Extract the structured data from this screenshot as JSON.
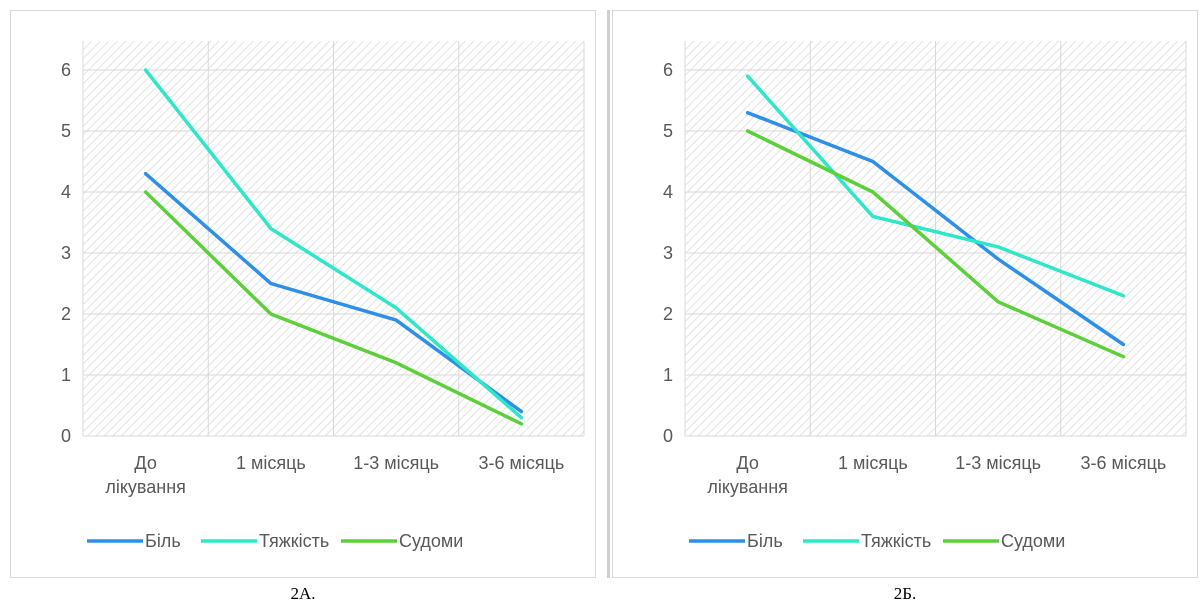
{
  "chart_data": [
    {
      "type": "line",
      "caption": "2А.",
      "categories": [
        [
          "До",
          "лікування"
        ],
        [
          "1 місяць"
        ],
        [
          "1-3 місяць"
        ],
        [
          "3-6 місяць"
        ]
      ],
      "ylim": [
        0,
        6
      ],
      "yticks": [
        "0",
        "1",
        "2",
        "3",
        "4",
        "5",
        "6"
      ],
      "grid": true,
      "legend_position": "bottom",
      "series": [
        {
          "name": "Біль",
          "color": "#2e8fe6",
          "values": [
            4.3,
            2.5,
            1.9,
            0.4
          ]
        },
        {
          "name": "Тяжкість",
          "color": "#2ee6c8",
          "values": [
            6.0,
            3.4,
            2.1,
            0.3
          ]
        },
        {
          "name": "Судоми",
          "color": "#5ccf3a",
          "values": [
            4.0,
            2.0,
            1.2,
            0.2
          ]
        }
      ]
    },
    {
      "type": "line",
      "caption": "2Б.",
      "categories": [
        [
          "До",
          "лікування"
        ],
        [
          "1 місяць"
        ],
        [
          "1-3 місяць"
        ],
        [
          "3-6 місяць"
        ]
      ],
      "ylim": [
        0,
        6
      ],
      "yticks": [
        "0",
        "1",
        "2",
        "3",
        "4",
        "5",
        "6"
      ],
      "grid": true,
      "legend_position": "bottom",
      "series": [
        {
          "name": "Біль",
          "color": "#2e8fe6",
          "values": [
            5.3,
            4.5,
            2.9,
            1.5
          ]
        },
        {
          "name": "Тяжкість",
          "color": "#2ee6c8",
          "values": [
            5.9,
            3.6,
            3.1,
            2.3
          ]
        },
        {
          "name": "Судоми",
          "color": "#5ccf3a",
          "values": [
            5.0,
            4.0,
            2.2,
            1.3
          ]
        }
      ]
    }
  ]
}
